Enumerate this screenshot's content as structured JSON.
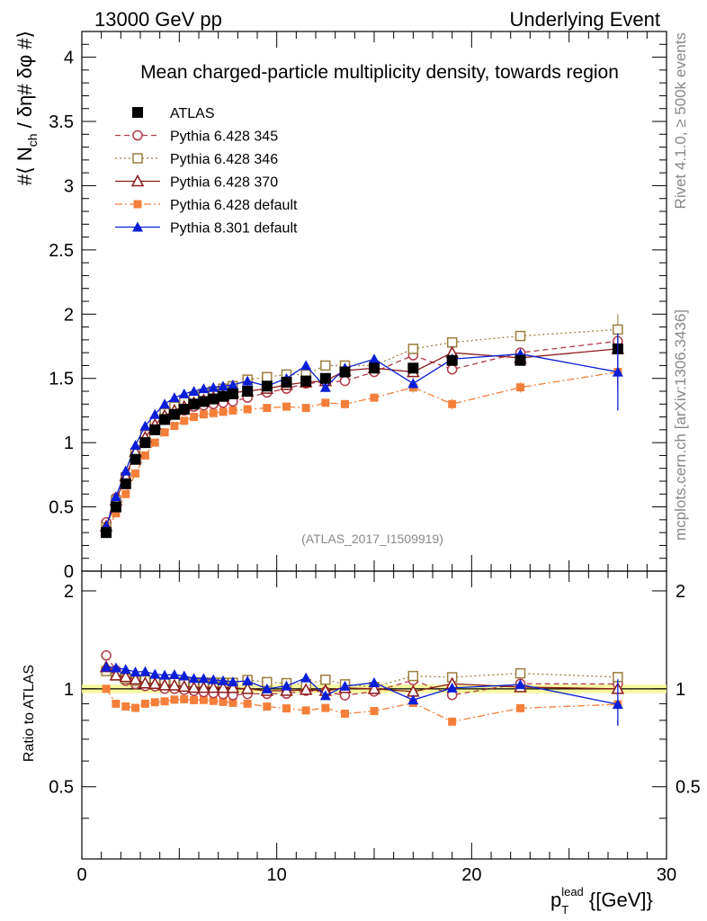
{
  "header": {
    "left": "13000 GeV pp",
    "right": "Underlying Event"
  },
  "side": {
    "rivet": "Rivet 4.1.0, ≥ 500k events",
    "mcplots": "mcplots.cern.ch [arXiv:1306.3436]"
  },
  "chart_data": {
    "type": "line",
    "title": "Mean charged-particle multiplicity density, towards region",
    "analysis_label": "(ATLAS_2017_I1509919)",
    "ylabel": "#⟨ N_ch / δη# δφ #⟩",
    "ylabel_parts": {
      "a": "#⟨ N",
      "sub": "ch",
      "b": " / δη# δφ #⟩"
    },
    "xlabel": "p_T^lead {[GeV]}",
    "xlabel_parts": {
      "p": "p",
      "sub": "T",
      "sup": "lead",
      "unit": " {[GeV]}"
    },
    "ratio_ylabel": "Ratio to ATLAS",
    "xlim": [
      0,
      30
    ],
    "ylim": [
      0,
      4.2
    ],
    "ratio_ylim": [
      0.3,
      2.3
    ],
    "x_ticks": [
      "0",
      "10",
      "20",
      "30"
    ],
    "y_ticks": [
      "0",
      "0.5",
      "1",
      "1.5",
      "2",
      "2.5",
      "3",
      "3.5",
      "4"
    ],
    "ratio_ticks": [
      "0.5",
      "1",
      "2"
    ],
    "x": [
      1.25,
      1.75,
      2.25,
      2.75,
      3.25,
      3.75,
      4.25,
      4.75,
      5.25,
      5.75,
      6.25,
      6.75,
      7.25,
      7.75,
      8.5,
      9.5,
      10.5,
      11.5,
      12.5,
      13.5,
      15,
      17,
      19,
      22.5,
      27.5
    ],
    "series": [
      {
        "name": "ATLAS",
        "color": "#000000",
        "marker": "filled-square",
        "dash": "none",
        "values": [
          0.3,
          0.5,
          0.68,
          0.87,
          1.0,
          1.1,
          1.18,
          1.22,
          1.26,
          1.3,
          1.32,
          1.34,
          1.36,
          1.38,
          1.4,
          1.44,
          1.47,
          1.48,
          1.5,
          1.55,
          1.58,
          1.58,
          1.64,
          1.64,
          1.73
        ]
      },
      {
        "name": "Pythia 6.428 345",
        "color": "#b03a48",
        "marker": "open-circle",
        "dash": "6,4",
        "values": [
          0.38,
          0.57,
          0.72,
          0.9,
          1.02,
          1.12,
          1.18,
          1.22,
          1.25,
          1.28,
          1.29,
          1.3,
          1.31,
          1.32,
          1.35,
          1.39,
          1.42,
          1.46,
          1.47,
          1.48,
          1.55,
          1.68,
          1.57,
          1.7,
          1.79
        ]
      },
      {
        "name": "Pythia 6.428 346",
        "color": "#9c7d3d",
        "marker": "open-square",
        "dash": "2,3",
        "values": [
          0.34,
          0.55,
          0.73,
          0.92,
          1.06,
          1.16,
          1.23,
          1.28,
          1.32,
          1.36,
          1.38,
          1.4,
          1.42,
          1.44,
          1.49,
          1.51,
          1.53,
          1.53,
          1.6,
          1.6,
          1.6,
          1.73,
          1.78,
          1.83,
          1.88
        ]
      },
      {
        "name": "Pythia 6.428 370",
        "color": "#8b1a1a",
        "marker": "open-triangle",
        "dash": "none",
        "values": [
          0.35,
          0.55,
          0.74,
          0.93,
          1.04,
          1.14,
          1.21,
          1.25,
          1.28,
          1.31,
          1.33,
          1.35,
          1.37,
          1.39,
          1.4,
          1.42,
          1.45,
          1.47,
          1.48,
          1.56,
          1.58,
          1.55,
          1.7,
          1.66,
          1.73
        ]
      },
      {
        "name": "Pythia 6.428 default",
        "color": "#f47f3a",
        "marker": "filled-square-small",
        "dash": "8,3,2,3",
        "values": [
          0.3,
          0.45,
          0.6,
          0.76,
          0.9,
          1.0,
          1.08,
          1.13,
          1.17,
          1.2,
          1.22,
          1.23,
          1.24,
          1.25,
          1.26,
          1.27,
          1.28,
          1.27,
          1.31,
          1.3,
          1.35,
          1.43,
          1.3,
          1.43,
          1.55
        ]
      },
      {
        "name": "Pythia 8.301 default",
        "color": "#0a1ed8",
        "marker": "filled-triangle",
        "dash": "none",
        "values": [
          0.35,
          0.58,
          0.78,
          0.98,
          1.13,
          1.22,
          1.3,
          1.35,
          1.38,
          1.4,
          1.42,
          1.43,
          1.44,
          1.45,
          1.48,
          1.44,
          1.5,
          1.6,
          1.43,
          1.58,
          1.65,
          1.46,
          1.65,
          1.69,
          1.55
        ]
      }
    ]
  }
}
